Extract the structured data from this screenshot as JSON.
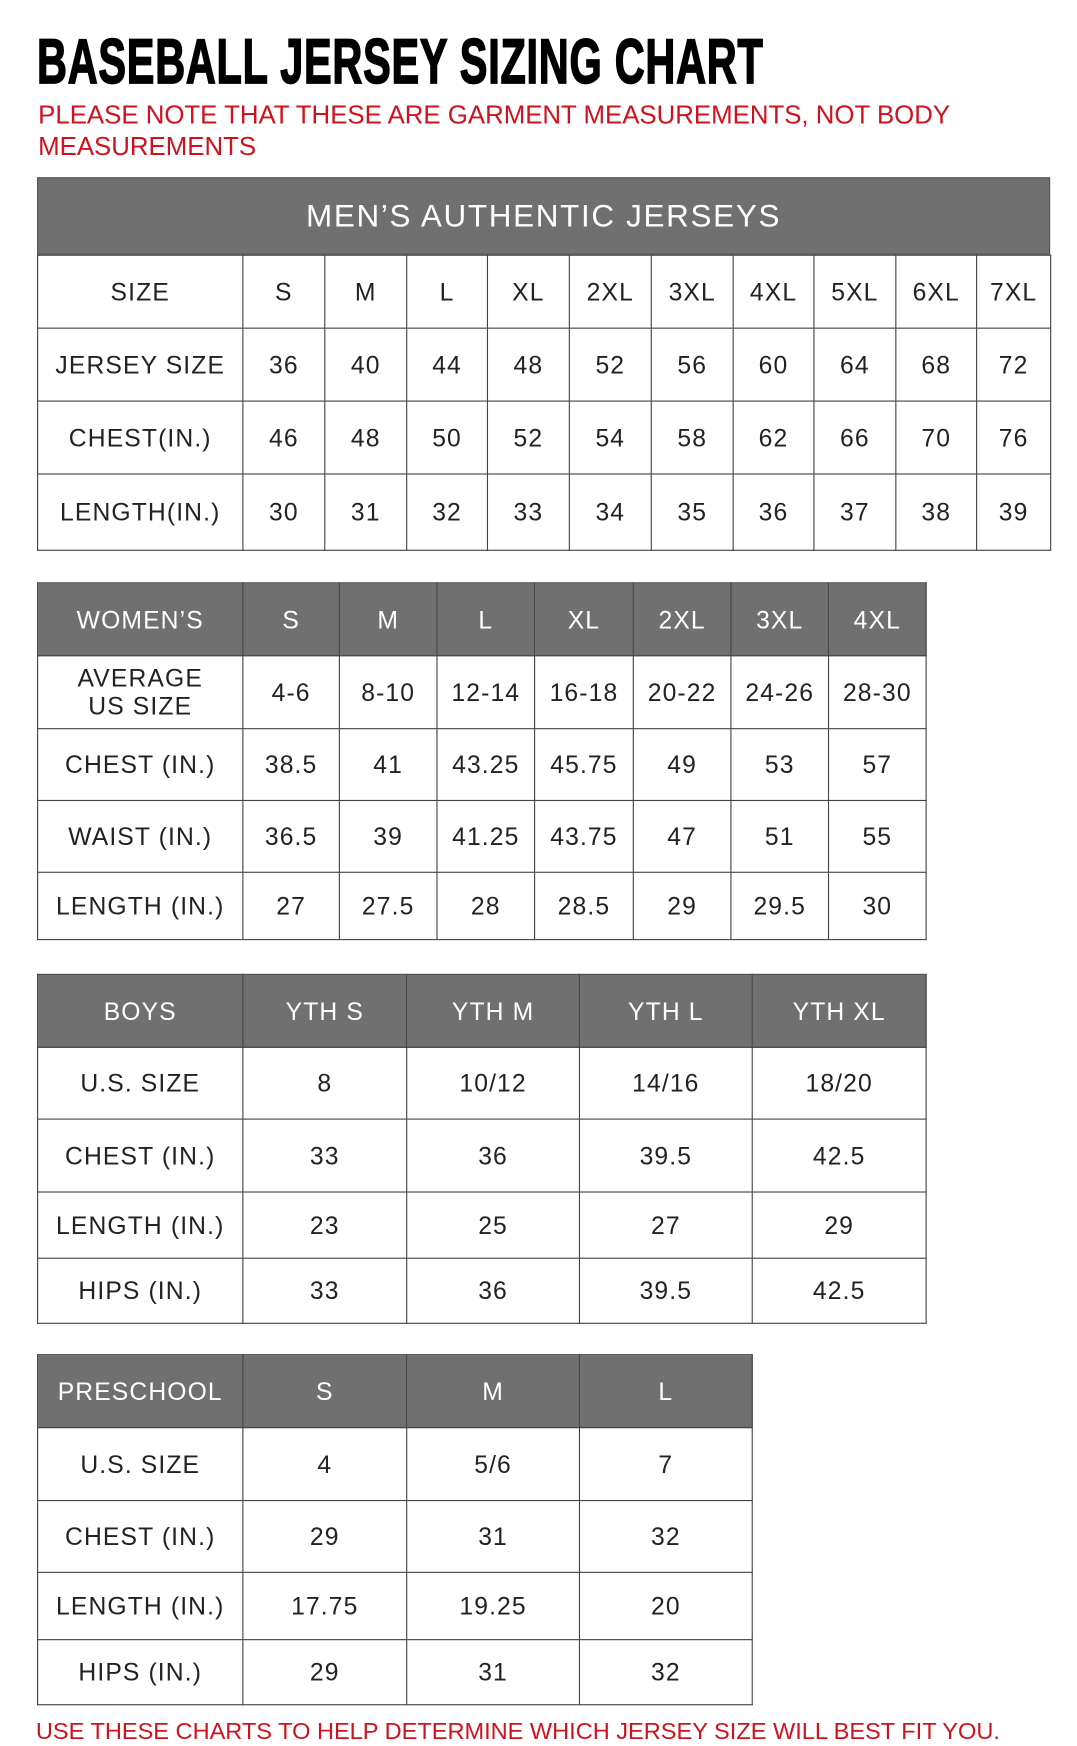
{
  "title": "BASEBALL JERSEY SIZING CHART",
  "note": "PLEASE NOTE THAT THESE ARE GARMENT MEASUREMENTS, NOT BODY MEASUREMENTS",
  "footer": "USE THESE CHARTS TO HELP DETERMINE WHICH JERSEY SIZE WILL BEST FIT YOU.",
  "colors": {
    "accent_red": "#d0121e",
    "header_gray": "#707070"
  },
  "tables": [
    {
      "id": "mens",
      "banner": "MEN’S AUTHENTIC JERSEYS",
      "header_gray": false,
      "rows": [
        [
          "SIZE",
          "S",
          "M",
          "L",
          "XL",
          "2XL",
          "3XL",
          "4XL",
          "5XL",
          "6XL",
          "7XL"
        ],
        [
          "JERSEY SIZE",
          "36",
          "40",
          "44",
          "48",
          "52",
          "56",
          "60",
          "64",
          "68",
          "72"
        ],
        [
          "CHEST(IN.)",
          "46",
          "48",
          "50",
          "52",
          "54",
          "58",
          "62",
          "66",
          "70",
          "76"
        ],
        [
          "LENGTH(IN.)",
          "30",
          "31",
          "32",
          "33",
          "34",
          "35",
          "36",
          "37",
          "38",
          "39"
        ]
      ]
    },
    {
      "id": "womens",
      "header_gray": true,
      "rows": [
        [
          "WOMEN’S",
          "S",
          "M",
          "L",
          "XL",
          "2XL",
          "3XL",
          "4XL"
        ],
        [
          "AVERAGE US SIZE",
          "4-6",
          "8-10",
          "12-14",
          "16-18",
          "20-22",
          "24-26",
          "28-30"
        ],
        [
          "CHEST (IN.)",
          "38.5",
          "41",
          "43.25",
          "45.75",
          "49",
          "53",
          "57"
        ],
        [
          "WAIST (IN.)",
          "36.5",
          "39",
          "41.25",
          "43.75",
          "47",
          "51",
          "55"
        ],
        [
          "LENGTH (IN.)",
          "27",
          "27.5",
          "28",
          "28.5",
          "29",
          "29.5",
          "30"
        ]
      ]
    },
    {
      "id": "boys",
      "header_gray": true,
      "rows": [
        [
          "BOYS",
          "YTH S",
          "YTH M",
          "YTH L",
          "YTH XL"
        ],
        [
          "U.S. SIZE",
          "8",
          "10/12",
          "14/16",
          "18/20"
        ],
        [
          "CHEST (IN.)",
          "33",
          "36",
          "39.5",
          "42.5"
        ],
        [
          "LENGTH (IN.)",
          "23",
          "25",
          "27",
          "29"
        ],
        [
          "HIPS (IN.)",
          "33",
          "36",
          "39.5",
          "42.5"
        ]
      ]
    },
    {
      "id": "preschool",
      "header_gray": true,
      "rows": [
        [
          "PRESCHOOL",
          "S",
          "M",
          "L"
        ],
        [
          "U.S. SIZE",
          "4",
          "5/6",
          "7"
        ],
        [
          "CHEST (IN.)",
          "29",
          "31",
          "32"
        ],
        [
          "LENGTH (IN.)",
          "17.75",
          "19.25",
          "20"
        ],
        [
          "HIPS (IN.)",
          "29",
          "31",
          "32"
        ]
      ]
    }
  ]
}
